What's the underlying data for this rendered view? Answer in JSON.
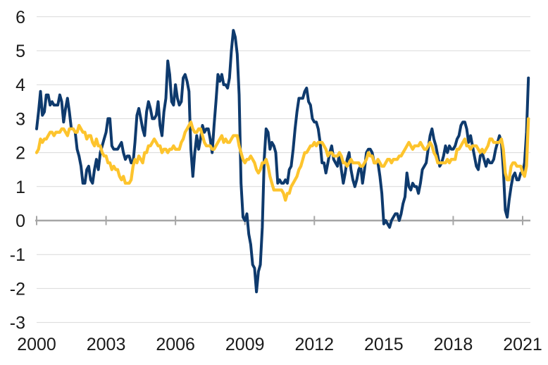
{
  "chart_data": {
    "type": "line",
    "title": "",
    "x_axis": {
      "start_year": 2000,
      "points_per_year": 12,
      "tick_years": [
        2000,
        2003,
        2006,
        2009,
        2012,
        2015,
        2018,
        2021
      ],
      "tick_labels": [
        "2000",
        "2003",
        "2006",
        "2009",
        "2012",
        "2015",
        "2018",
        "2021"
      ]
    },
    "y_axis": {
      "ylim": [
        -3,
        6
      ],
      "tick_values": [
        6,
        5,
        4,
        3,
        2,
        1,
        0,
        -1,
        -2,
        -3
      ],
      "tick_labels": [
        "6",
        "5",
        "4",
        "3",
        "2",
        "1",
        "0",
        "-1",
        "-2",
        "-3"
      ]
    },
    "grid": {
      "horizontal": true,
      "vertical": false
    },
    "legend": "none",
    "series": [
      {
        "name": "dark-blue-line",
        "color": "#0e3a6d",
        "stroke_width": 4,
        "values": [
          2.7,
          3.2,
          3.8,
          3.1,
          3.2,
          3.7,
          3.7,
          3.4,
          3.5,
          3.4,
          3.4,
          3.4,
          3.7,
          3.5,
          2.9,
          3.3,
          3.6,
          3.2,
          2.7,
          2.7,
          2.6,
          2.1,
          1.9,
          1.6,
          1.1,
          1.1,
          1.5,
          1.6,
          1.2,
          1.1,
          1.5,
          1.8,
          1.5,
          2.0,
          2.2,
          2.4,
          2.6,
          3.0,
          3.0,
          2.2,
          2.1,
          2.1,
          2.1,
          2.2,
          2.3,
          2.0,
          1.8,
          1.9,
          1.9,
          1.7,
          1.7,
          2.3,
          3.1,
          3.3,
          3.0,
          2.7,
          2.5,
          3.2,
          3.5,
          3.3,
          3.0,
          3.0,
          3.1,
          3.5,
          2.8,
          2.5,
          3.2,
          3.6,
          4.7,
          4.3,
          3.5,
          3.4,
          4.0,
          3.6,
          3.4,
          3.5,
          4.2,
          4.3,
          4.1,
          3.8,
          2.1,
          1.3,
          2.0,
          2.5,
          2.1,
          2.4,
          2.8,
          2.6,
          2.7,
          2.7,
          2.4,
          2.0,
          2.8,
          3.5,
          4.3,
          4.1,
          4.3,
          4.0,
          4.0,
          3.9,
          4.2,
          5.0,
          5.6,
          5.4,
          4.9,
          3.7,
          1.1,
          0.1,
          0.0,
          0.2,
          -0.4,
          -0.7,
          -1.3,
          -1.4,
          -2.1,
          -1.5,
          -1.3,
          -0.2,
          1.8,
          2.7,
          2.6,
          2.1,
          2.3,
          2.2,
          2.0,
          1.1,
          1.2,
          1.1,
          1.1,
          1.2,
          1.1,
          1.5,
          1.6,
          2.1,
          2.7,
          3.2,
          3.6,
          3.6,
          3.6,
          3.8,
          3.9,
          3.5,
          3.4,
          3.0,
          2.9,
          2.9,
          2.7,
          2.3,
          1.7,
          1.7,
          1.4,
          1.7,
          2.0,
          2.2,
          1.8,
          1.7,
          1.6,
          2.0,
          1.5,
          1.1,
          1.4,
          1.8,
          2.0,
          1.5,
          1.2,
          1.0,
          1.2,
          1.5,
          1.6,
          1.1,
          1.5,
          2.0,
          2.1,
          2.1,
          2.0,
          1.7,
          1.7,
          1.7,
          1.3,
          0.8,
          -0.1,
          0.0,
          -0.1,
          -0.2,
          0.0,
          0.1,
          0.2,
          0.2,
          0.0,
          0.2,
          0.5,
          0.7,
          1.4,
          1.0,
          0.9,
          1.1,
          1.0,
          1.0,
          0.8,
          1.1,
          1.5,
          1.6,
          1.7,
          2.1,
          2.5,
          2.7,
          2.4,
          2.2,
          1.9,
          1.6,
          1.7,
          1.9,
          2.2,
          2.0,
          2.2,
          2.1,
          2.1,
          2.2,
          2.4,
          2.5,
          2.8,
          2.9,
          2.9,
          2.7,
          2.3,
          2.5,
          2.2,
          1.9,
          1.6,
          1.5,
          1.9,
          2.0,
          1.8,
          1.6,
          1.8,
          1.7,
          1.7,
          1.8,
          2.1,
          2.3,
          2.5,
          2.3,
          1.5,
          0.3,
          0.1,
          0.6,
          1.0,
          1.3,
          1.4,
          1.2,
          1.2,
          1.4,
          1.4,
          1.7,
          2.6,
          4.2
        ]
      },
      {
        "name": "yellow-line",
        "color": "#fdc42d",
        "stroke_width": 4.3,
        "values": [
          2.0,
          2.1,
          2.4,
          2.3,
          2.4,
          2.4,
          2.5,
          2.6,
          2.6,
          2.5,
          2.6,
          2.6,
          2.6,
          2.7,
          2.7,
          2.6,
          2.5,
          2.7,
          2.7,
          2.7,
          2.6,
          2.6,
          2.8,
          2.7,
          2.6,
          2.6,
          2.4,
          2.5,
          2.5,
          2.3,
          2.2,
          2.4,
          2.2,
          2.2,
          2.0,
          1.9,
          1.9,
          1.7,
          1.7,
          1.5,
          1.6,
          1.5,
          1.5,
          1.3,
          1.2,
          1.3,
          1.1,
          1.1,
          1.1,
          1.2,
          1.6,
          1.8,
          1.7,
          1.9,
          1.8,
          1.7,
          2.0,
          2.0,
          2.2,
          2.2,
          2.3,
          2.4,
          2.3,
          2.2,
          2.2,
          2.0,
          2.1,
          2.1,
          2.0,
          2.1,
          2.1,
          2.2,
          2.1,
          2.1,
          2.1,
          2.3,
          2.4,
          2.6,
          2.7,
          2.8,
          2.9,
          2.7,
          2.6,
          2.6,
          2.7,
          2.7,
          2.5,
          2.3,
          2.2,
          2.2,
          2.2,
          2.1,
          2.1,
          2.2,
          2.3,
          2.4,
          2.5,
          2.3,
          2.4,
          2.3,
          2.3,
          2.4,
          2.5,
          2.5,
          2.5,
          2.2,
          2.0,
          1.8,
          1.7,
          1.8,
          1.8,
          1.9,
          1.8,
          1.7,
          1.5,
          1.4,
          1.5,
          1.7,
          1.7,
          1.8,
          1.6,
          1.3,
          1.1,
          0.9,
          0.9,
          0.9,
          0.9,
          0.9,
          0.8,
          0.6,
          0.8,
          0.8,
          1.0,
          1.1,
          1.2,
          1.3,
          1.5,
          1.6,
          1.8,
          2.0,
          2.0,
          2.1,
          2.2,
          2.2,
          2.3,
          2.2,
          2.3,
          2.3,
          2.3,
          2.2,
          2.1,
          1.9,
          2.0,
          2.0,
          1.9,
          1.9,
          1.9,
          2.0,
          1.9,
          1.7,
          1.7,
          1.6,
          1.7,
          1.8,
          1.7,
          1.7,
          1.7,
          1.7,
          1.6,
          1.6,
          1.7,
          1.8,
          2.0,
          1.9,
          1.9,
          1.7,
          1.7,
          1.8,
          1.7,
          1.6,
          1.6,
          1.7,
          1.8,
          1.8,
          1.7,
          1.8,
          1.8,
          1.8,
          1.9,
          1.9,
          2.0,
          2.1,
          2.2,
          2.3,
          2.2,
          2.1,
          2.2,
          2.2,
          2.2,
          2.3,
          2.2,
          2.1,
          2.1,
          2.2,
          2.3,
          2.2,
          2.0,
          1.9,
          1.7,
          1.7,
          1.7,
          1.7,
          1.7,
          1.8,
          1.7,
          1.8,
          1.8,
          1.8,
          2.1,
          2.1,
          2.2,
          2.3,
          2.4,
          2.2,
          2.2,
          2.1,
          2.2,
          2.2,
          2.2,
          2.1,
          2.0,
          2.1,
          2.0,
          2.1,
          2.2,
          2.4,
          2.4,
          2.3,
          2.3,
          2.3,
          2.3,
          2.4,
          2.1,
          1.4,
          1.2,
          1.2,
          1.6,
          1.7,
          1.7,
          1.6,
          1.6,
          1.6,
          1.4,
          1.3,
          1.6,
          3.0
        ]
      }
    ]
  },
  "colors": {
    "background": "#ffffff",
    "gridline": "#d9d9d9",
    "zero_axis": "#a6a6a6",
    "tick_label": "#1a1a1a"
  }
}
